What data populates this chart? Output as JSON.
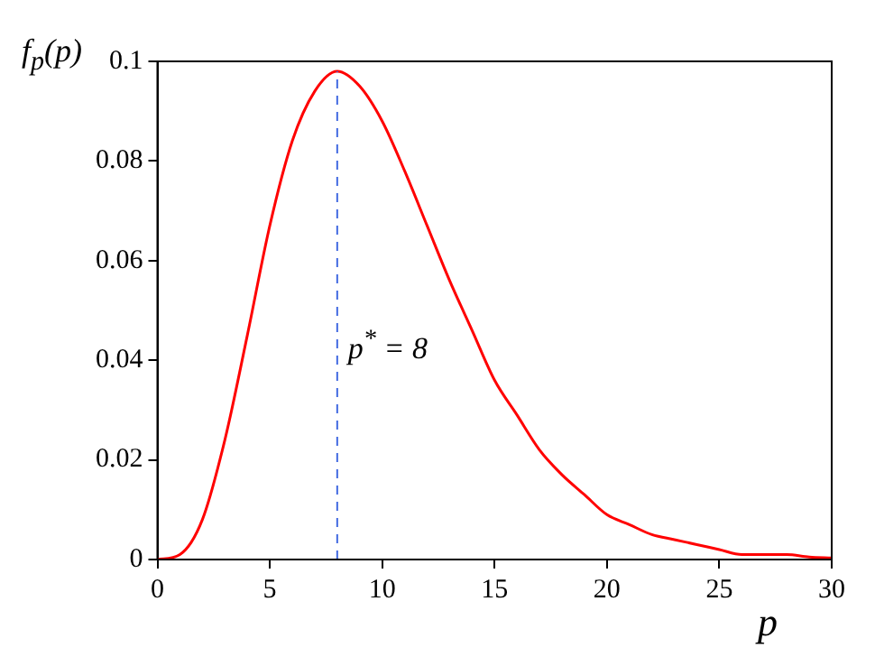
{
  "chart_data": {
    "type": "line",
    "xlabel": "p",
    "ylabel": "f$_{p}$(p)",
    "x": [
      0,
      1,
      2,
      3,
      4,
      5,
      6,
      7,
      8,
      9,
      10,
      11,
      12,
      13,
      14,
      15,
      16,
      17,
      18,
      19,
      20,
      21,
      22,
      23,
      24,
      25,
      26,
      27,
      28,
      29,
      30
    ],
    "series": [
      {
        "color": "#ff0000",
        "values": [
          0,
          0.001,
          0.008,
          0.024,
          0.045,
          0.067,
          0.084,
          0.094,
          0.098,
          0.095,
          0.088,
          0.078,
          0.067,
          0.056,
          0.046,
          0.036,
          0.029,
          0.022,
          0.017,
          0.013,
          0.009,
          0.007,
          0.005,
          0.004,
          0.003,
          0.002,
          0.001,
          0.001,
          0.001,
          0.0005,
          0.0003
        ]
      }
    ],
    "xlim": [
      0,
      30
    ],
    "xticks": [
      0,
      5,
      10,
      15,
      20,
      25,
      30
    ],
    "ylim": [
      0,
      0.1
    ],
    "yticks": [
      0,
      0.02,
      0.04,
      0.06,
      0.08,
      0.1
    ],
    "ref_lines": [
      {
        "axis": "x",
        "value": 8,
        "color": "#4169e1",
        "line_style": "dashed"
      }
    ],
    "annotations": [
      {
        "text": "p$^{*}$ = 8",
        "x": 8,
        "y": 0.042
      }
    ],
    "grid": false,
    "legend": false,
    "marker": "none",
    "line_style": "solid"
  }
}
